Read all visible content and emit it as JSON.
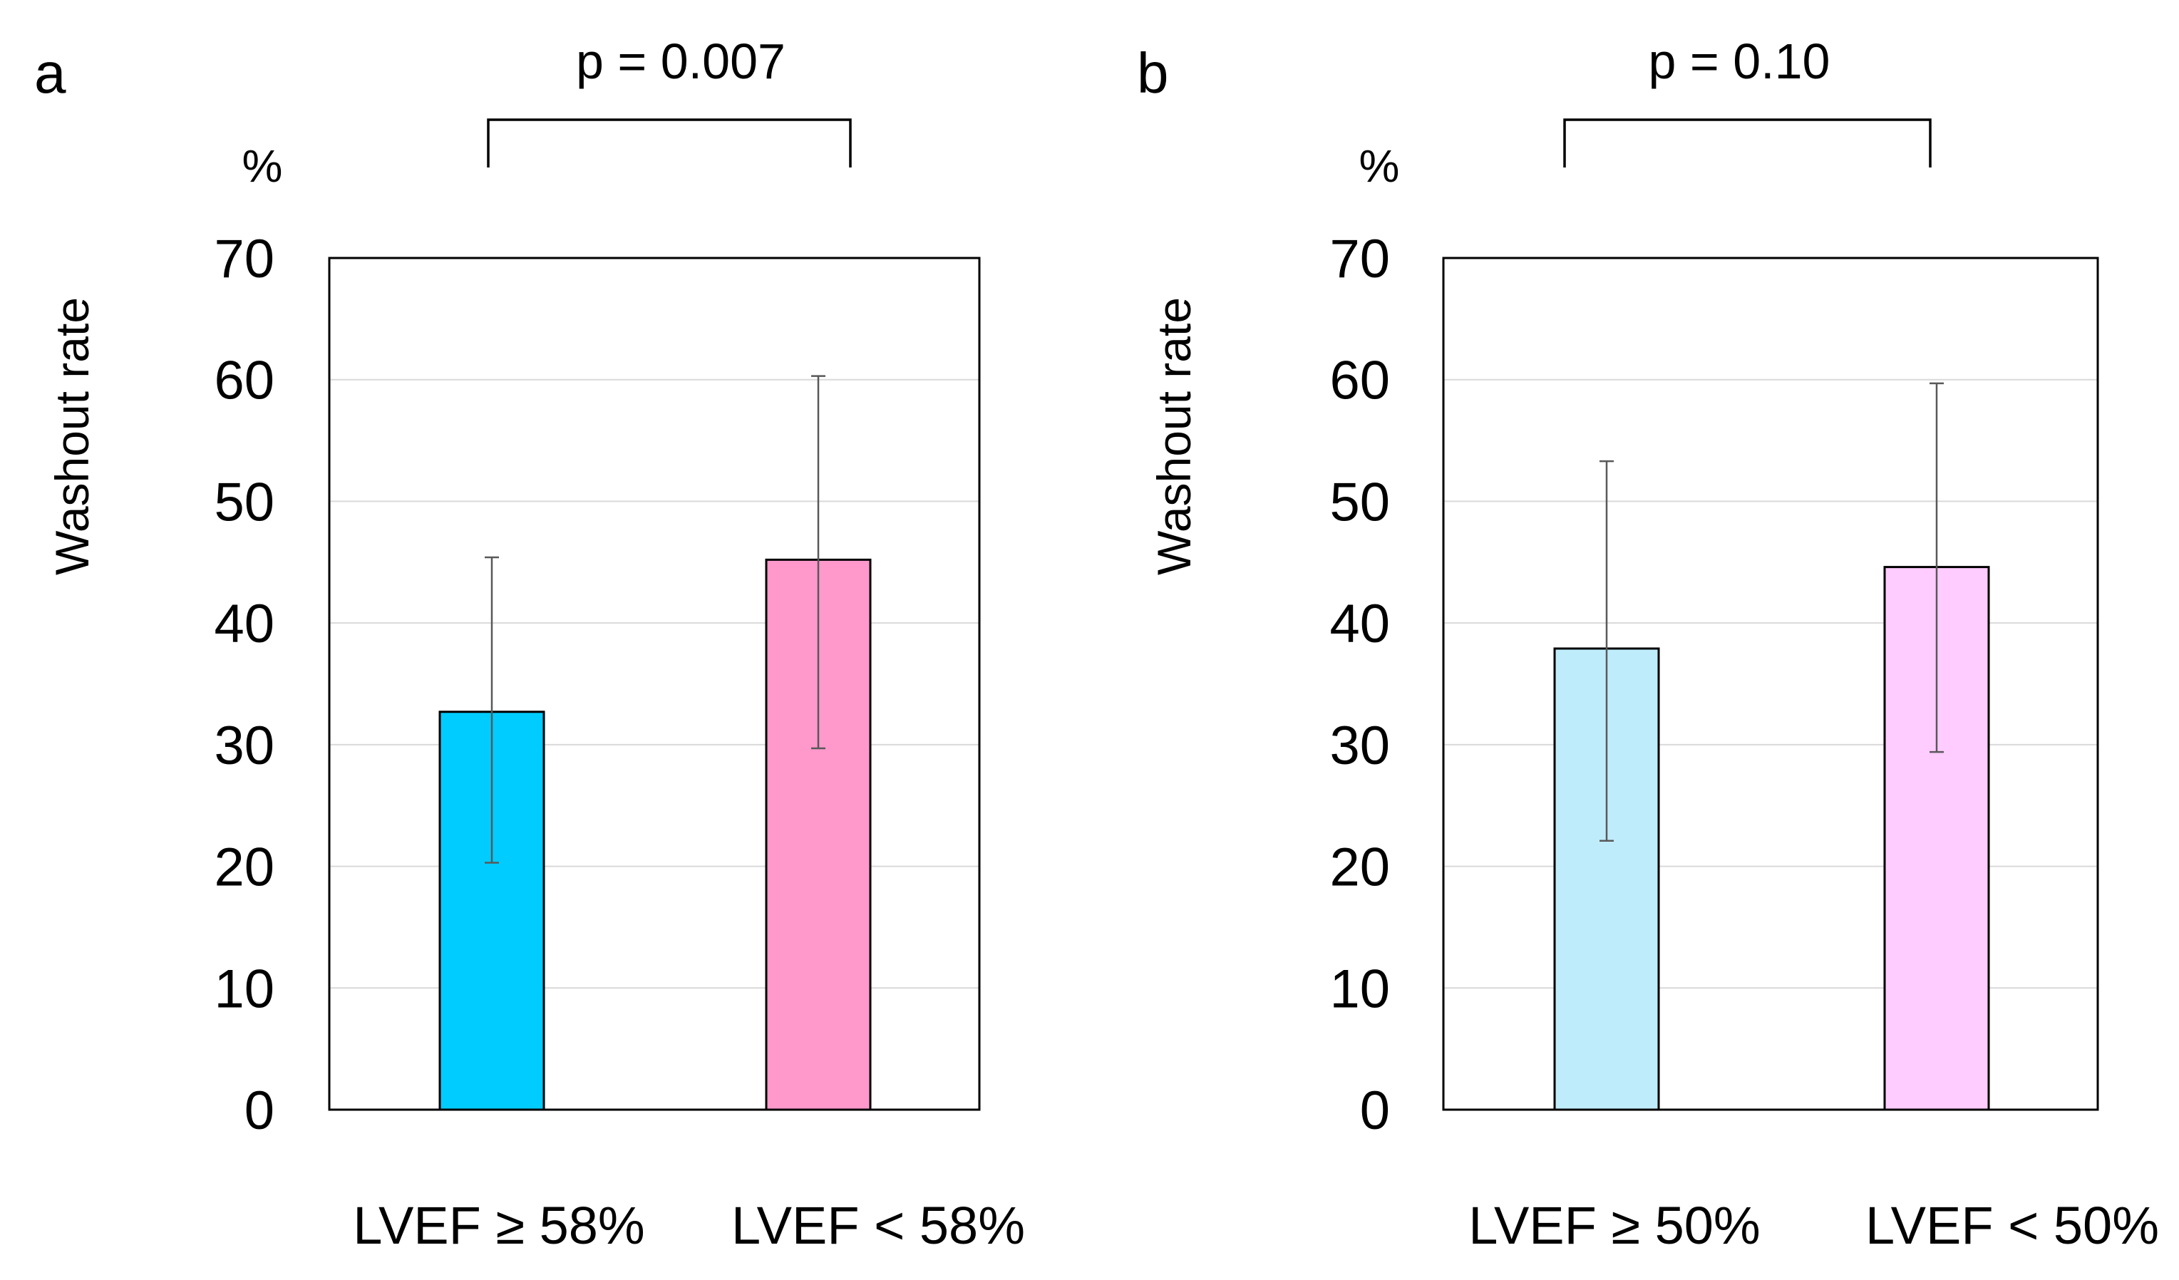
{
  "chart_data": [
    {
      "type": "bar",
      "panel": "a",
      "significance": "p = 0.007",
      "unit": "%",
      "ylabel": "Washout rate",
      "ylim": [
        0,
        70
      ],
      "yticks": [
        "0",
        "10",
        "20",
        "30",
        "40",
        "50",
        "60",
        "70"
      ],
      "grid": true,
      "categories": [
        "LVEF ≥ 58%",
        "LVEF < 58%"
      ],
      "values": [
        32.7,
        45.2
      ],
      "error_low": [
        20.3,
        29.7
      ],
      "error_high": [
        45.4,
        60.3
      ],
      "colors": [
        "#00ccff",
        "#ff99cc"
      ]
    },
    {
      "type": "bar",
      "panel": "b",
      "significance": "p = 0.10",
      "unit": "%",
      "ylabel": "Washout rate",
      "ylim": [
        0,
        70
      ],
      "yticks": [
        "0",
        "10",
        "20",
        "30",
        "40",
        "50",
        "60",
        "70"
      ],
      "grid": true,
      "categories": [
        "LVEF ≥ 50%",
        "LVEF < 50%"
      ],
      "values": [
        37.9,
        44.6
      ],
      "error_low": [
        22.1,
        29.4
      ],
      "error_high": [
        53.3,
        59.7
      ],
      "colors": [
        "#bfecfb",
        "#ffccff"
      ]
    }
  ]
}
